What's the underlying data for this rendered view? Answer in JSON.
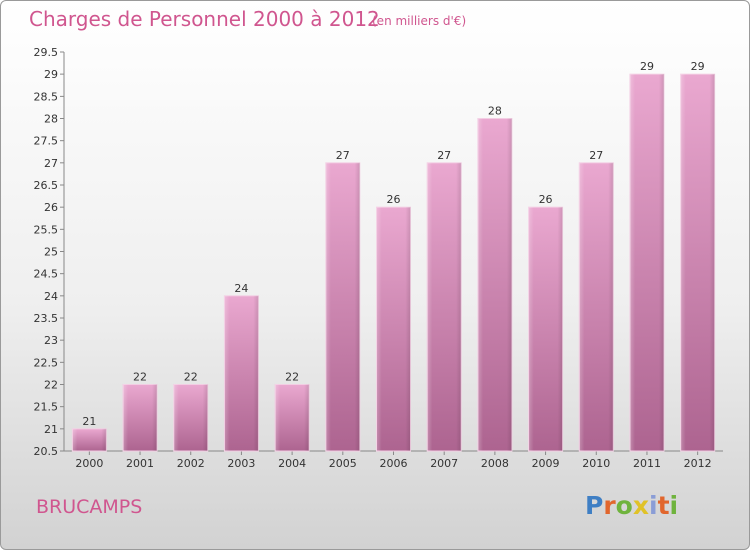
{
  "header": {
    "title": "Charges de Personnel 2000 à 2012",
    "subtitle": "(en milliers d'€)"
  },
  "footer": {
    "place": "BRUCAMPS",
    "logo_text": "Proxiti"
  },
  "colors": {
    "accent": "#d0568f",
    "bar_light": "#e8a8cf",
    "bar_dark": "#b06792"
  },
  "chart_data": {
    "type": "bar",
    "categories": [
      "2000",
      "2001",
      "2002",
      "2003",
      "2004",
      "2005",
      "2006",
      "2007",
      "2008",
      "2009",
      "2010",
      "2011",
      "2012"
    ],
    "values": [
      21,
      22,
      22,
      24,
      22,
      27,
      26,
      27,
      28,
      26,
      27,
      29,
      29
    ],
    "data_labels": [
      "21",
      "22",
      "22",
      "24",
      "22",
      "27",
      "26",
      "27",
      "28",
      "26",
      "27",
      "29",
      "29"
    ],
    "ylim": [
      20.5,
      29.5
    ],
    "yticks": [
      "20.5",
      "21",
      "21.5",
      "22",
      "22.5",
      "23",
      "23.5",
      "24",
      "24.5",
      "25",
      "25.5",
      "26",
      "26.5",
      "27",
      "27.5",
      "28",
      "28.5",
      "29",
      "29.5"
    ],
    "grid": false,
    "legend": "none"
  }
}
